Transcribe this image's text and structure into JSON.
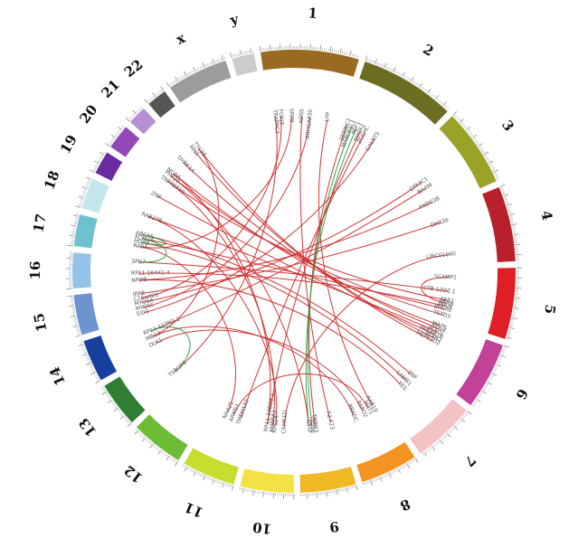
{
  "chromosomes": [
    {
      "name": "1",
      "color": "#9a6a22",
      "size": 249
    },
    {
      "name": "2",
      "color": "#6b6e22",
      "size": 243
    },
    {
      "name": "3",
      "color": "#9aa228",
      "size": 198
    },
    {
      "name": "4",
      "color": "#b8202c",
      "size": 191
    },
    {
      "name": "5",
      "color": "#e01e26",
      "size": 181
    },
    {
      "name": "6",
      "color": "#c2429a",
      "size": 171
    },
    {
      "name": "7",
      "color": "#f3c2c4",
      "size": 159
    },
    {
      "name": "8",
      "color": "#f39420",
      "size": 146
    },
    {
      "name": "9",
      "color": "#f0b825",
      "size": 141
    },
    {
      "name": "10",
      "color": "#f3e244",
      "size": 136
    },
    {
      "name": "11",
      "color": "#c6dc2e",
      "size": 135
    },
    {
      "name": "12",
      "color": "#6cbc36",
      "size": 134
    },
    {
      "name": "13",
      "color": "#2f7e34",
      "size": 115
    },
    {
      "name": "14",
      "color": "#163f9e",
      "size": 107
    },
    {
      "name": "15",
      "color": "#6e94d0",
      "size": 102
    },
    {
      "name": "16",
      "color": "#93c3e6",
      "size": 90
    },
    {
      "name": "17",
      "color": "#6ec2d0",
      "size": 81
    },
    {
      "name": "18",
      "color": "#c2e6ec",
      "size": 78
    },
    {
      "name": "19",
      "color": "#6a2aa2",
      "size": 59
    },
    {
      "name": "20",
      "color": "#9248b8",
      "size": 63
    },
    {
      "name": "21",
      "color": "#b690d0",
      "size": 48
    },
    {
      "name": "22",
      "color": "#555555",
      "size": 51
    },
    {
      "name": "x",
      "color": "#9c9c9c",
      "size": 155
    },
    {
      "name": "y",
      "color": "#cccccc",
      "size": 57
    }
  ],
  "genes": [
    {
      "id": "g0",
      "label": "TRAPPC3",
      "chrom": "1",
      "pos": 0.07
    },
    {
      "id": "g1",
      "label": "FOXJ3",
      "chrom": "1",
      "pos": 0.15
    },
    {
      "id": "g2",
      "label": "SRP9",
      "chrom": "1",
      "pos": 0.3
    },
    {
      "id": "g3",
      "label": "ADSS",
      "chrom": "1",
      "pos": 0.45
    },
    {
      "id": "g4",
      "label": "ARHGAP30",
      "chrom": "1",
      "pos": 0.57
    },
    {
      "id": "g5",
      "label": "LPP",
      "chrom": "1",
      "pos": 0.82
    },
    {
      "id": "g6",
      "label": "SERINC2",
      "chrom": "2",
      "pos": 0.05
    },
    {
      "id": "g7",
      "label": "MARCKSL1",
      "chrom": "2",
      "pos": 0.12
    },
    {
      "id": "g8",
      "label": "PEF1",
      "chrom": "2",
      "pos": 0.19
    },
    {
      "id": "g9",
      "label": "SHOX2",
      "chrom": "2",
      "pos": 0.26
    },
    {
      "id": "g10",
      "label": "ZCCHC",
      "chrom": "2",
      "pos": 0.33
    },
    {
      "id": "g11",
      "label": "GALNT5",
      "chrom": "2",
      "pos": 0.5
    },
    {
      "id": "g12",
      "label": "GTF3C1",
      "chrom": "3",
      "pos": 0.47
    },
    {
      "id": "g13",
      "label": "BAAM",
      "chrom": "3",
      "pos": 0.6
    },
    {
      "id": "g14",
      "label": "FNDC3B",
      "chrom": "3",
      "pos": 0.87
    },
    {
      "id": "g15",
      "label": "DHX36",
      "chrom": "4",
      "pos": 0.2
    },
    {
      "id": "g16",
      "label": "LINC01060",
      "chrom": "4",
      "pos": 0.82
    },
    {
      "id": "g17",
      "label": "SCAMP1",
      "chrom": "5",
      "pos": 0.17
    },
    {
      "id": "g18",
      "label": "CTB-12O2.1",
      "chrom": "5",
      "pos": 0.44
    },
    {
      "id": "g19",
      "label": "ASB1",
      "chrom": "5",
      "pos": 0.62
    },
    {
      "id": "g20",
      "label": "PRRB",
      "chrom": "5",
      "pos": 0.68
    },
    {
      "id": "g21",
      "label": "PMVK",
      "chrom": "5",
      "pos": 0.74
    },
    {
      "id": "g22",
      "label": "BHLHE",
      "chrom": "5",
      "pos": 0.8
    },
    {
      "id": "g23",
      "label": "TSTD3",
      "chrom": "5",
      "pos": 0.92
    },
    {
      "id": "g24",
      "label": "MAPK",
      "chrom": "6",
      "pos": 0.05
    },
    {
      "id": "g25",
      "label": "SCN4",
      "chrom": "6",
      "pos": 0.12
    },
    {
      "id": "g26",
      "label": "PLAGL",
      "chrom": "6",
      "pos": 0.19
    },
    {
      "id": "g27",
      "label": "PRKAR1B",
      "chrom": "6",
      "pos": 0.26
    },
    {
      "id": "g28",
      "label": "ATXN2",
      "chrom": "6",
      "pos": 0.33
    },
    {
      "id": "g29",
      "label": "MEPE2D2",
      "chrom": "6",
      "pos": 0.4
    },
    {
      "id": "g30",
      "label": "ZNF",
      "chrom": "7",
      "pos": 0.15
    },
    {
      "id": "g31",
      "label": "LAMB1",
      "chrom": "7",
      "pos": 0.33
    },
    {
      "id": "g32",
      "label": "TES",
      "chrom": "7",
      "pos": 0.48
    },
    {
      "id": "g33",
      "label": "RAB19",
      "chrom": "8",
      "pos": 0.18
    },
    {
      "id": "g34",
      "label": "MAT1",
      "chrom": "8",
      "pos": 0.3
    },
    {
      "id": "g35",
      "label": "RSPO2",
      "chrom": "8",
      "pos": 0.45
    },
    {
      "id": "g36",
      "label": "PRKDC",
      "chrom": "8",
      "pos": 0.7
    },
    {
      "id": "g37",
      "label": "F2-F23",
      "chrom": "9",
      "pos": 0.18
    },
    {
      "id": "g38",
      "label": "TRPM3",
      "chrom": "9",
      "pos": 0.58
    },
    {
      "id": "g39",
      "label": "ITGB6",
      "chrom": "9",
      "pos": 0.66
    },
    {
      "id": "g40",
      "label": "GTSF",
      "chrom": "9",
      "pos": 0.74
    },
    {
      "id": "g41",
      "label": "CAMK1D",
      "chrom": "10",
      "pos": 0.25
    },
    {
      "id": "g42",
      "label": "RPS24",
      "chrom": "10",
      "pos": 0.48
    },
    {
      "id": "g43",
      "label": "AMBRA1",
      "chrom": "10",
      "pos": 0.56
    },
    {
      "id": "g44",
      "label": "RP11-348O9.1",
      "chrom": "10",
      "pos": 0.7
    },
    {
      "id": "g45",
      "label": "TMEM132",
      "chrom": "11",
      "pos": 0.3
    },
    {
      "id": "g46",
      "label": "ARMS1",
      "chrom": "11",
      "pos": 0.5
    },
    {
      "id": "g47",
      "label": "NAA25",
      "chrom": "11",
      "pos": 0.68
    },
    {
      "id": "g48",
      "label": "TSBOP3",
      "chrom": "13",
      "pos": 0.25
    },
    {
      "id": "g49",
      "label": "DLK1",
      "chrom": "14",
      "pos": 0.18
    },
    {
      "id": "g50",
      "label": "MEG3",
      "chrom": "14",
      "pos": 0.42
    },
    {
      "id": "g51",
      "label": "RP11-113N2.2",
      "chrom": "14",
      "pos": 0.62
    },
    {
      "id": "g52",
      "label": "EID1",
      "chrom": "15",
      "pos": 0.12
    },
    {
      "id": "g53",
      "label": "MYO5C",
      "chrom": "15",
      "pos": 0.3
    },
    {
      "id": "g54",
      "label": "MYO5A",
      "chrom": "15",
      "pos": 0.48
    },
    {
      "id": "g55",
      "label": "C15orf26",
      "chrom": "15",
      "pos": 0.64
    },
    {
      "id": "g56",
      "label": "IRF8",
      "chrom": "15",
      "pos": 0.8
    },
    {
      "id": "g57",
      "label": "NPIPB",
      "chrom": "16",
      "pos": 0.12
    },
    {
      "id": "g58",
      "label": "RP11-164X1.4",
      "chrom": "16",
      "pos": 0.4
    },
    {
      "id": "g59",
      "label": "SPG7",
      "chrom": "16",
      "pos": 0.85
    },
    {
      "id": "g60",
      "label": "RARA",
      "chrom": "17",
      "pos": 0.3
    },
    {
      "id": "g61",
      "label": "HOXB",
      "chrom": "17",
      "pos": 0.5
    },
    {
      "id": "g62",
      "label": "KCNJ16",
      "chrom": "17",
      "pos": 0.68
    },
    {
      "id": "g63",
      "label": "ABCA5",
      "chrom": "17",
      "pos": 0.85
    },
    {
      "id": "g64",
      "label": "RAB27B",
      "chrom": "18",
      "pos": 0.5
    },
    {
      "id": "g65",
      "label": "ZNF",
      "chrom": "19",
      "pos": 0.4
    },
    {
      "id": "g66",
      "label": "TNFRSF19",
      "chrom": "20",
      "pos": 0.2
    },
    {
      "id": "g67",
      "label": "PHF20",
      "chrom": "20",
      "pos": 0.55
    },
    {
      "id": "g68",
      "label": "NCOA",
      "chrom": "20",
      "pos": 0.75
    },
    {
      "id": "g69",
      "label": "DYRK1A",
      "chrom": "21",
      "pos": 0.45
    },
    {
      "id": "g70",
      "label": "MN1",
      "chrom": "22",
      "pos": 0.25
    },
    {
      "id": "g71",
      "label": "TTC28",
      "chrom": "22",
      "pos": 0.6
    }
  ],
  "links": [
    {
      "from": "g0",
      "to": "g48",
      "color": "#cc2222"
    },
    {
      "from": "g1",
      "to": "g55",
      "color": "#cc2222"
    },
    {
      "from": "g2",
      "to": "g60",
      "color": "#cc2222"
    },
    {
      "from": "g3",
      "to": "g37",
      "color": "#cc2222"
    },
    {
      "from": "g4",
      "to": "g53",
      "color": "#cc2222"
    },
    {
      "from": "g5",
      "to": "g33",
      "color": "#cc2222"
    },
    {
      "from": "g6",
      "to": "g38",
      "color": "#cc2222"
    },
    {
      "from": "g7",
      "to": "g39",
      "color": "#2a9a3a"
    },
    {
      "from": "g8",
      "to": "g40",
      "color": "#2a9a3a"
    },
    {
      "from": "g9",
      "to": "g44",
      "color": "#cc2222"
    },
    {
      "from": "g10",
      "to": "g45",
      "color": "#cc2222"
    },
    {
      "from": "g11",
      "to": "g52",
      "color": "#cc2222"
    },
    {
      "from": "g12",
      "to": "g54",
      "color": "#cc2222"
    },
    {
      "from": "g13",
      "to": "g51",
      "color": "#cc2222"
    },
    {
      "from": "g14",
      "to": "g57",
      "color": "#cc2222"
    },
    {
      "from": "g15",
      "to": "g56",
      "color": "#cc2222"
    },
    {
      "from": "g16",
      "to": "g41",
      "color": "#cc2222"
    },
    {
      "from": "g17",
      "to": "g20",
      "color": "#cc2222"
    },
    {
      "from": "g18",
      "to": "g59",
      "color": "#cc2222"
    },
    {
      "from": "g19",
      "to": "g66",
      "color": "#cc2222"
    },
    {
      "from": "g21",
      "to": "g58",
      "color": "#cc2222"
    },
    {
      "from": "g22",
      "to": "g62",
      "color": "#cc2222"
    },
    {
      "from": "g23",
      "to": "g67",
      "color": "#cc2222"
    },
    {
      "from": "g24",
      "to": "g68",
      "color": "#cc2222"
    },
    {
      "from": "g25",
      "to": "g69",
      "color": "#cc2222"
    },
    {
      "from": "g26",
      "to": "g64",
      "color": "#cc2222"
    },
    {
      "from": "g27",
      "to": "g65",
      "color": "#cc2222"
    },
    {
      "from": "g28",
      "to": "g70",
      "color": "#cc2222"
    },
    {
      "from": "g29",
      "to": "g71",
      "color": "#cc2222"
    },
    {
      "from": "g30",
      "to": "g63",
      "color": "#cc2222"
    },
    {
      "from": "g31",
      "to": "g61",
      "color": "#cc2222"
    },
    {
      "from": "g32",
      "to": "g57",
      "color": "#cc2222"
    },
    {
      "from": "g34",
      "to": "g46",
      "color": "#cc2222"
    },
    {
      "from": "g35",
      "to": "g49",
      "color": "#cc2222"
    },
    {
      "from": "g36",
      "to": "g50",
      "color": "#cc2222"
    },
    {
      "from": "g42",
      "to": "g64",
      "color": "#cc2222"
    },
    {
      "from": "g43",
      "to": "g66",
      "color": "#cc2222"
    },
    {
      "from": "g47",
      "to": "g60",
      "color": "#cc2222"
    },
    {
      "from": "g61",
      "to": "g63",
      "color": "#2a9a3a"
    },
    {
      "from": "g59",
      "to": "g62",
      "color": "#2a9a3a"
    },
    {
      "from": "g48",
      "to": "g51",
      "color": "#2a9a3a"
    },
    {
      "from": "g50",
      "to": "g71",
      "color": "#cc2222"
    },
    {
      "from": "g40",
      "to": "g67",
      "color": "#cc2222"
    },
    {
      "from": "g44",
      "to": "g68",
      "color": "#cc2222"
    }
  ]
}
